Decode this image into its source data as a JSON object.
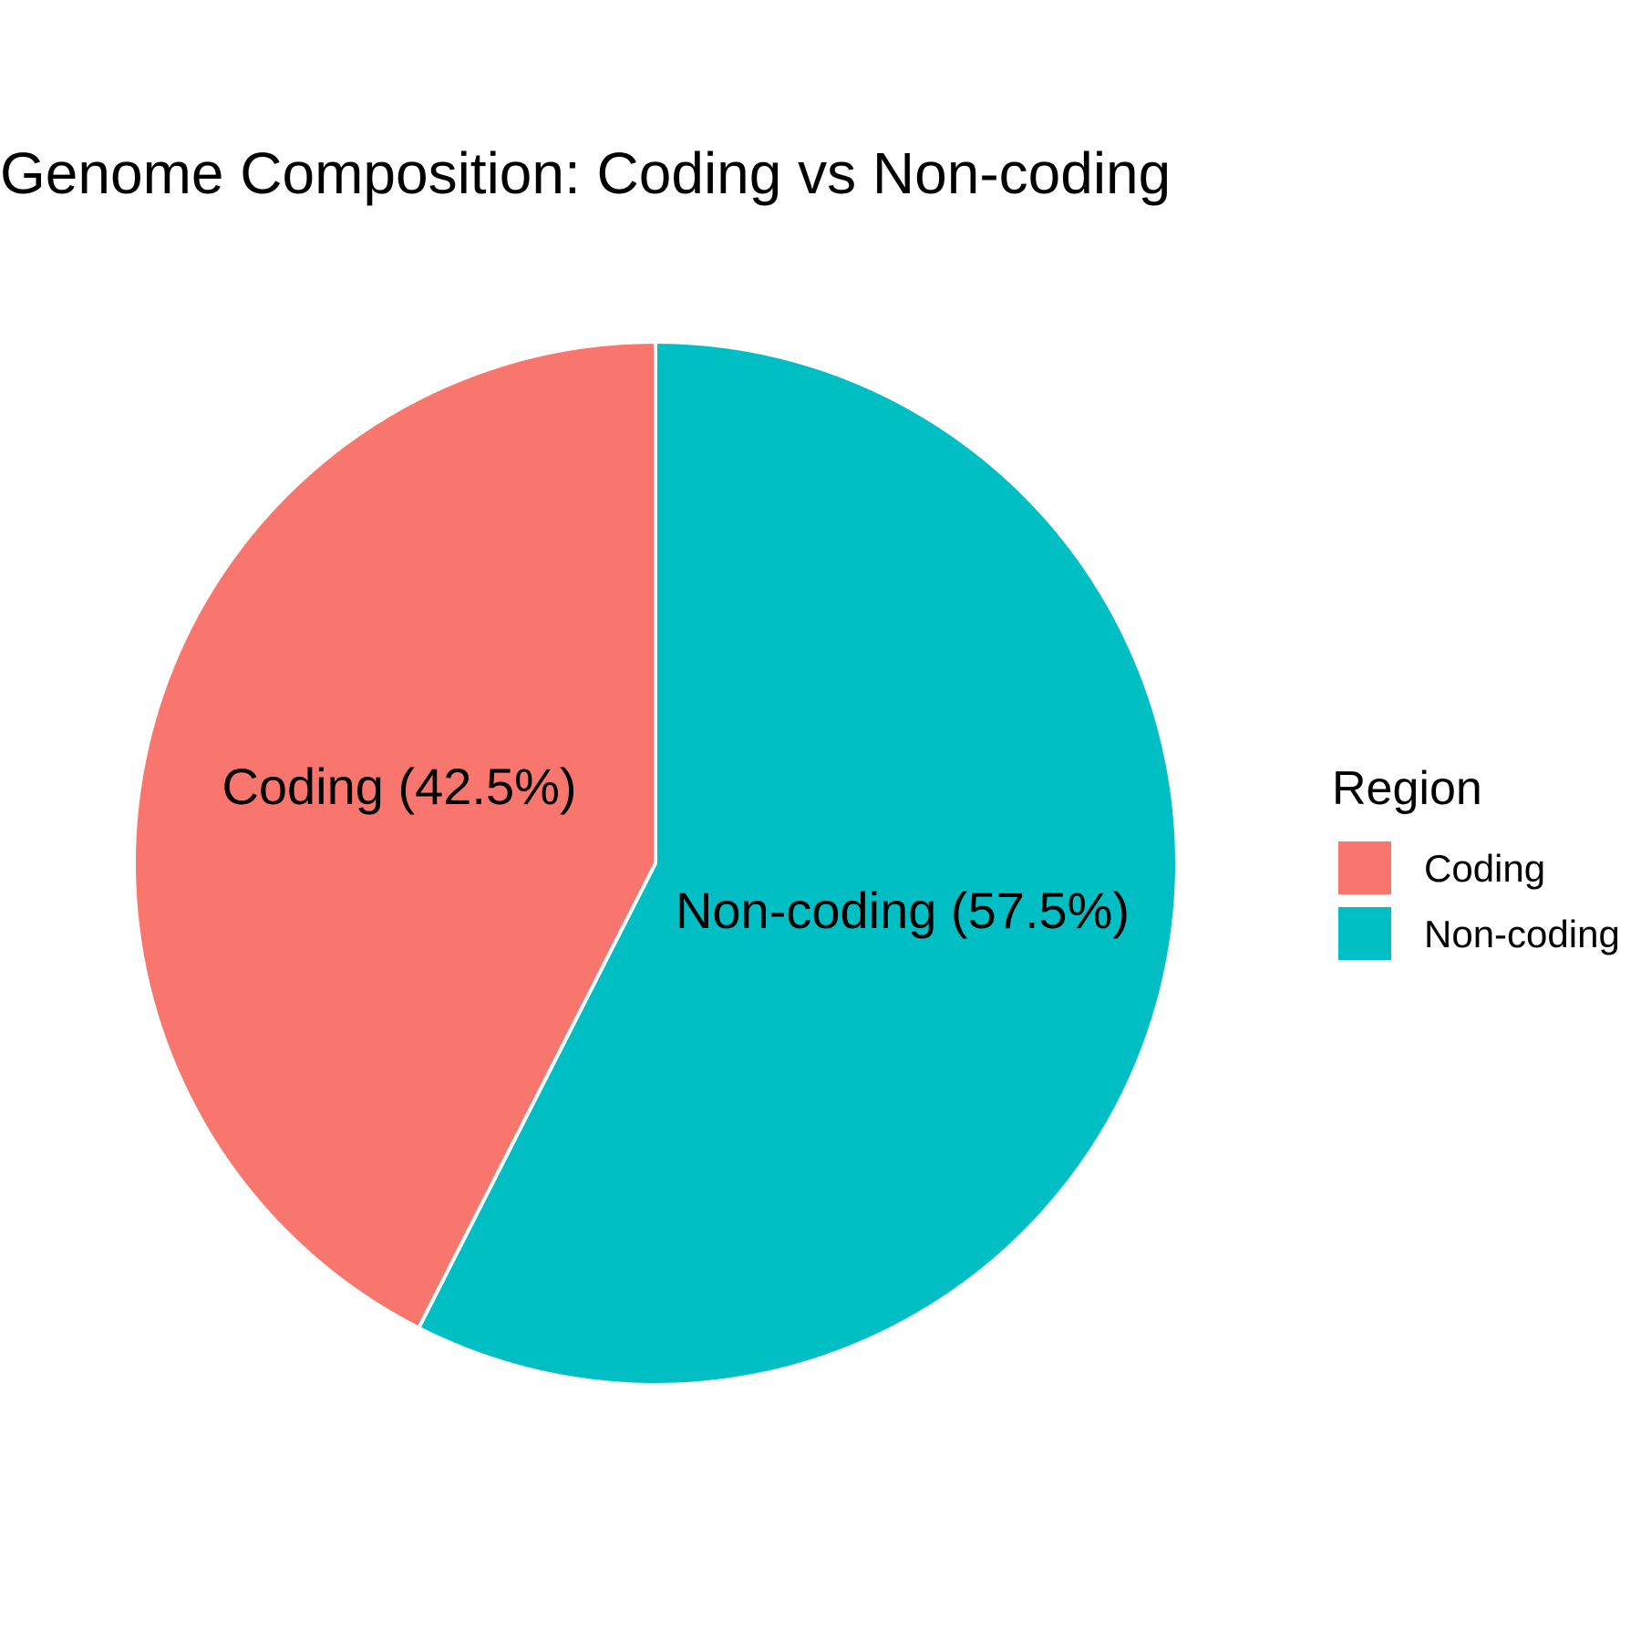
{
  "chart_data": {
    "type": "pie",
    "title": "Genome Composition: Coding vs Non-coding",
    "categories": [
      "Coding",
      "Non-coding"
    ],
    "values": [
      42.5,
      57.5
    ],
    "unit": "%",
    "slice_labels": [
      "Coding (42.5%)",
      "Non-coding (57.5%)"
    ],
    "colors": [
      "#F8766D",
      "#00BFC4"
    ],
    "slice_border_color": "#FFFFFF",
    "start": "12 o'clock",
    "direction": "counterclockwise for Coding, clockwise for Non-coding",
    "legend": {
      "title": "Region",
      "placement": "right",
      "items": [
        "Coding",
        "Non-coding"
      ]
    }
  }
}
